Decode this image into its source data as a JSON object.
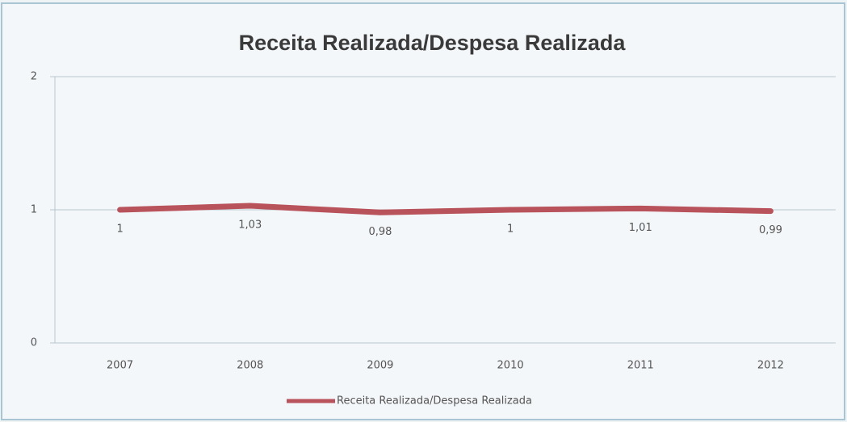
{
  "chart_data": {
    "type": "line",
    "title": "Receita Realizada/Despesa Realizada",
    "categories": [
      "2007",
      "2008",
      "2009",
      "2010",
      "2011",
      "2012"
    ],
    "series": [
      {
        "name": "Receita Realizada/Despesa Realizada",
        "color": "#b8525b",
        "values": [
          1,
          1.03,
          0.98,
          1,
          1.01,
          0.99
        ],
        "value_labels": [
          "1",
          "1,03",
          "0,98",
          "1",
          "1,01",
          "0,99"
        ]
      }
    ],
    "ylim": [
      0,
      2
    ],
    "yticks": [
      0,
      1,
      2
    ],
    "grid": true,
    "legend": "bottom"
  }
}
